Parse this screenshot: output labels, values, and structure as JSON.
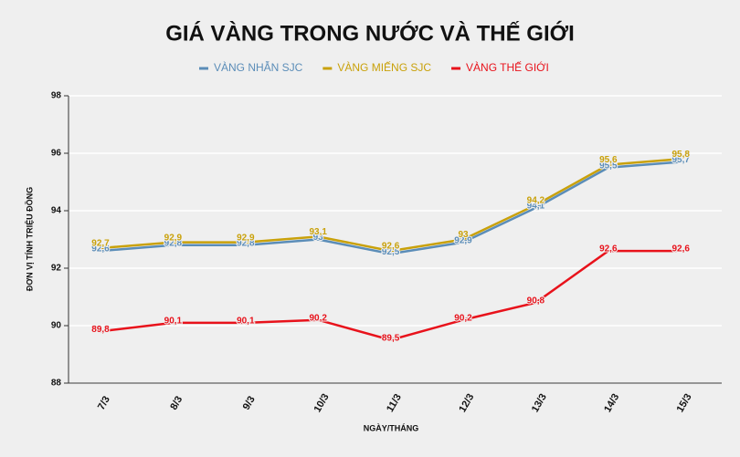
{
  "chart_data": {
    "type": "line",
    "title": "GIÁ VÀNG TRONG NƯỚC VÀ THẾ GIỚI",
    "x_label": "NGÀY/THÁNG",
    "y_label": "ĐƠN VỊ TÍNH TRIỆU ĐỒNG",
    "categories": [
      "7/3",
      "8/3",
      "9/3",
      "10/3",
      "11/3",
      "12/3",
      "13/3",
      "14/3",
      "15/3"
    ],
    "series": [
      {
        "name": "VÀNG NHẪN SJC",
        "color": "#5b8db8",
        "values": [
          92.6,
          92.8,
          92.8,
          93,
          92.5,
          92.9,
          94.1,
          95.5,
          95.7
        ],
        "value_labels": [
          "92,6",
          "92,8",
          "92,8",
          "93",
          "92,5",
          "92,9",
          "94,1",
          "95,5",
          "95,7"
        ]
      },
      {
        "name": "VÀNG MIẾNG SJC",
        "color": "#c9a10a",
        "values": [
          92.7,
          92.9,
          92.9,
          93.1,
          92.6,
          93,
          94.2,
          95.6,
          95.8
        ],
        "value_labels": [
          "92,7",
          "92,9",
          "92,9",
          "93,1",
          "92,6",
          "93",
          "94,2",
          "95,6",
          "95,8"
        ]
      },
      {
        "name": "VÀNG THẾ GIỚI",
        "color": "#e8121b",
        "values": [
          89.8,
          90.1,
          90.1,
          90.2,
          89.5,
          90.2,
          90.8,
          92.6,
          92.6
        ],
        "value_labels": [
          "89,8",
          "90,1",
          "90,1",
          "90,2",
          "89,5",
          "90,2",
          "90,8",
          "92,6",
          "92,6"
        ]
      }
    ],
    "ylim": [
      88,
      98
    ],
    "yticks": [
      88,
      90,
      92,
      94,
      96,
      98
    ],
    "grid": true
  }
}
